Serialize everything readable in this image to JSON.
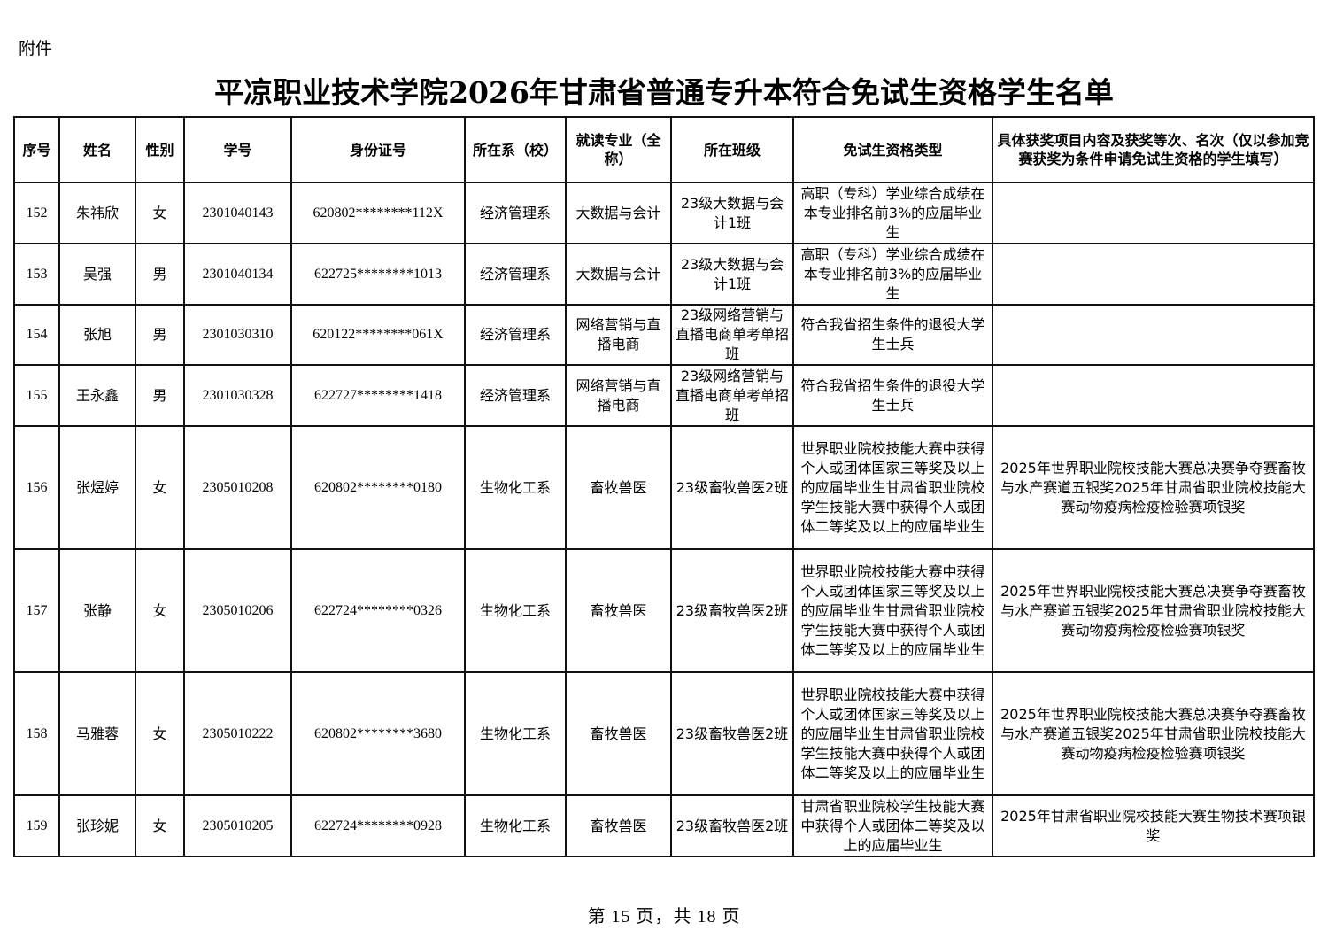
{
  "attachment_label": "附件",
  "title": "平凉职业技术学院2026年甘肃省普通专升本符合免试生资格学生名单",
  "table": {
    "headers": [
      "序号",
      "姓名",
      "性别",
      "学号",
      "身份证号",
      "所在系（校）",
      "就读专业（全称）",
      "所在班级",
      "免试生资格类型",
      "具体获奖项目内容及获奖等次、名次（仅以参加竞赛获奖为条件申请免试生资格的学生填写）"
    ],
    "rows": [
      [
        "152",
        "朱祎欣",
        "女",
        "2301040143",
        "620802********112X",
        "经济管理系",
        "大数据与会计",
        "23级大数据与会计1班",
        "高职（专科）学业综合成绩在本专业排名前3%的应届毕业生",
        ""
      ],
      [
        "153",
        "吴强",
        "男",
        "2301040134",
        "622725********1013",
        "经济管理系",
        "大数据与会计",
        "23级大数据与会计1班",
        "高职（专科）学业综合成绩在本专业排名前3%的应届毕业生",
        ""
      ],
      [
        "154",
        "张旭",
        "男",
        "2301030310",
        "620122********061X",
        "经济管理系",
        "网络营销与直播电商",
        "23级网络营销与直播电商单考单招班",
        "符合我省招生条件的退役大学生士兵",
        ""
      ],
      [
        "155",
        "王永鑫",
        "男",
        "2301030328",
        "622727********1418",
        "经济管理系",
        "网络营销与直播电商",
        "23级网络营销与直播电商单考单招班",
        "符合我省招生条件的退役大学生士兵",
        ""
      ],
      [
        "156",
        "张煜婷",
        "女",
        "2305010208",
        "620802********0180",
        "生物化工系",
        "畜牧兽医",
        "23级畜牧兽医2班",
        "世界职业院校技能大赛中获得个人或团体国家三等奖及以上的应届毕业生甘肃省职业院校学生技能大赛中获得个人或团体二等奖及以上的应届毕业生",
        "2025年世界职业院校技能大赛总决赛争夺赛畜牧与水产赛道五银奖2025年甘肃省职业院校技能大赛动物疫病检疫检验赛项银奖"
      ],
      [
        "157",
        "张静",
        "女",
        "2305010206",
        "622724********0326",
        "生物化工系",
        "畜牧兽医",
        "23级畜牧兽医2班",
        "世界职业院校技能大赛中获得个人或团体国家三等奖及以上的应届毕业生甘肃省职业院校学生技能大赛中获得个人或团体二等奖及以上的应届毕业生",
        "2025年世界职业院校技能大赛总决赛争夺赛畜牧与水产赛道五银奖2025年甘肃省职业院校技能大赛动物疫病检疫检验赛项银奖"
      ],
      [
        "158",
        "马雅蓉",
        "女",
        "2305010222",
        "620802********3680",
        "生物化工系",
        "畜牧兽医",
        "23级畜牧兽医2班",
        "世界职业院校技能大赛中获得个人或团体国家三等奖及以上的应届毕业生甘肃省职业院校学生技能大赛中获得个人或团体二等奖及以上的应届毕业生",
        "2025年世界职业院校技能大赛总决赛争夺赛畜牧与水产赛道五银奖2025年甘肃省职业院校技能大赛动物疫病检疫检验赛项银奖"
      ],
      [
        "159",
        "张珍妮",
        "女",
        "2305010205",
        "622724********0928",
        "生物化工系",
        "畜牧兽医",
        "23级畜牧兽医2班",
        "甘肃省职业院校学生技能大赛中获得个人或团体二等奖及以上的应届毕业生",
        "2025年甘肃省职业院校技能大赛生物技术赛项银奖"
      ]
    ]
  },
  "footer": "第 15 页，共 18 页"
}
